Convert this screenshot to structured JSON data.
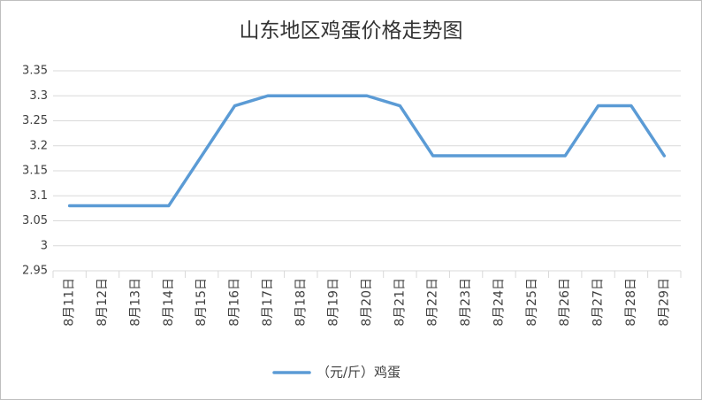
{
  "chart_data": {
    "type": "line",
    "title": "山东地区鸡蛋价格走势图",
    "categories": [
      "8月11日",
      "8月12日",
      "8月13日",
      "8月14日",
      "8月15日",
      "8月16日",
      "8月17日",
      "8月18日",
      "8月19日",
      "8月20日",
      "8月21日",
      "8月22日",
      "8月23日",
      "8月24日",
      "8月25日",
      "8月26日",
      "8月27日",
      "8月28日",
      "8月29日"
    ],
    "series": [
      {
        "name": "（元/斤）鸡蛋",
        "color": "#5b9bd5",
        "values": [
          3.08,
          3.08,
          3.08,
          3.08,
          3.18,
          3.28,
          3.3,
          3.3,
          3.3,
          3.3,
          3.28,
          3.18,
          3.18,
          3.18,
          3.18,
          3.18,
          3.28,
          3.28,
          3.18
        ]
      }
    ],
    "ylim": [
      2.95,
      3.35
    ],
    "yticks": [
      2.95,
      3,
      3.05,
      3.1,
      3.15,
      3.2,
      3.25,
      3.3,
      3.35
    ],
    "grid": true,
    "legend": "bottom"
  }
}
